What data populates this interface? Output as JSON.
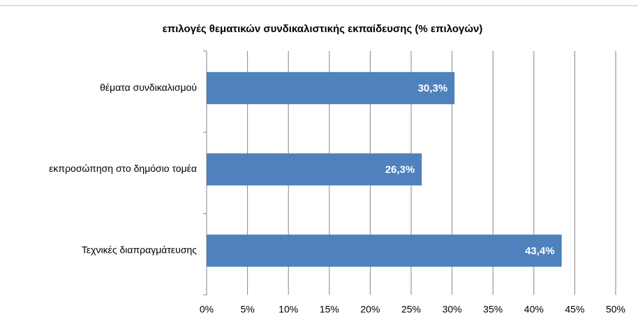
{
  "chart_data": {
    "type": "bar",
    "orientation": "horizontal",
    "title": "επιλογές θεματικών συνδικαλιστικής εκπαίδευσης (% επιλογών)",
    "categories": [
      "θέματα συνδικαλισμού",
      "εκπροσώπηση στο δημόσιο τομέα",
      "Τεχνικές διαπραγμάτευσης"
    ],
    "values": [
      30.3,
      26.3,
      43.4
    ],
    "value_labels": [
      "30,3%",
      "26,3%",
      "43,4%"
    ],
    "color": "#4f81bd",
    "xlim": [
      0,
      50
    ],
    "xticks": [
      {
        "value": 0,
        "label": "0%"
      },
      {
        "value": 5,
        "label": "5%"
      },
      {
        "value": 10,
        "label": "10%"
      },
      {
        "value": 15,
        "label": "15%"
      },
      {
        "value": 20,
        "label": "20%"
      },
      {
        "value": 25,
        "label": "25%"
      },
      {
        "value": 30,
        "label": "30%"
      },
      {
        "value": 35,
        "label": "35%"
      },
      {
        "value": 40,
        "label": "40%"
      },
      {
        "value": 45,
        "label": "45%"
      },
      {
        "value": 50,
        "label": "50%"
      }
    ],
    "grid": true
  }
}
